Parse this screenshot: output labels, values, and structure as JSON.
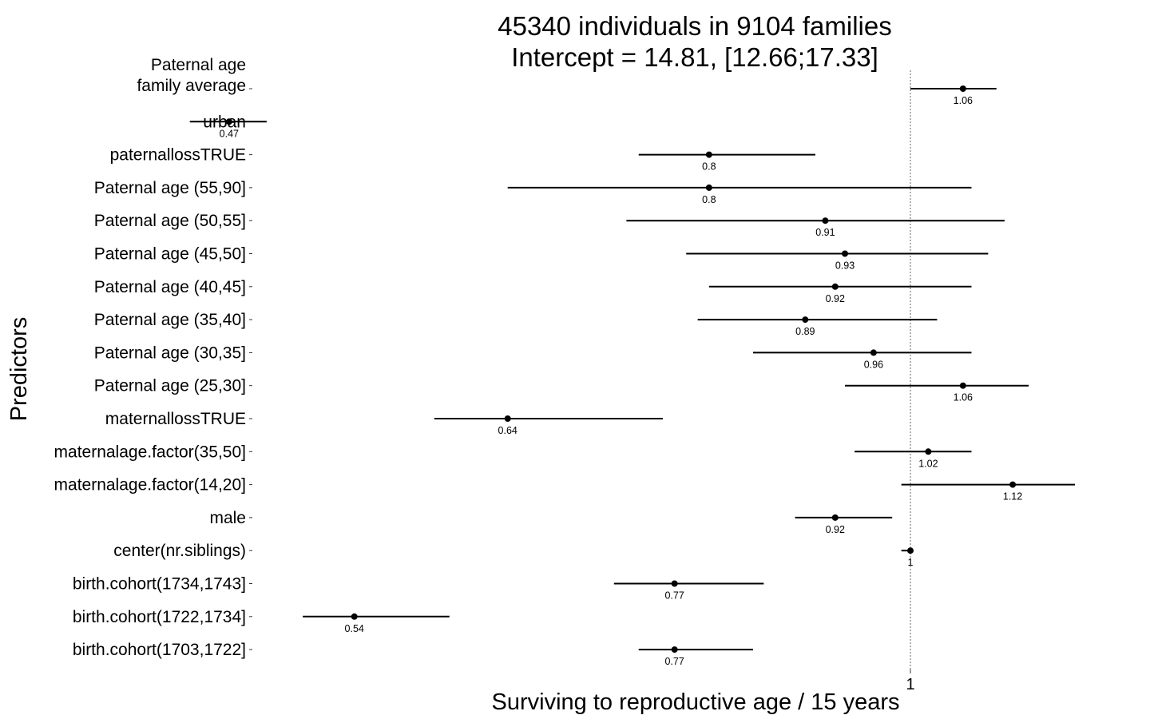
{
  "chart_data": {
    "type": "forest",
    "title": [
      "45340 individuals in 9104 families",
      "Intercept = 14.81, [12.66;17.33]"
    ],
    "xlabel": "Surviving to reproductive age / 15 years",
    "ylabel": "Predictors",
    "x_scale": "log",
    "xlim": [
      0.43,
      1.25
    ],
    "reference_line": 1,
    "x_ticks": [
      {
        "value": 1,
        "label": "1"
      }
    ],
    "rows": [
      {
        "label": [
          "Paternal age",
          "family average"
        ],
        "estimate": 1.06,
        "estimate_label": "1.06",
        "ci": [
          1.0,
          1.1
        ]
      },
      {
        "label": [
          "urban"
        ],
        "estimate": 0.47,
        "estimate_label": "0.47",
        "ci": [
          0.45,
          0.49
        ]
      },
      {
        "label": [
          "paternallossTRUE"
        ],
        "estimate": 0.8,
        "estimate_label": "0.8",
        "ci": [
          0.74,
          0.9
        ]
      },
      {
        "label": [
          "Paternal age (55,90]"
        ],
        "estimate": 0.8,
        "estimate_label": "0.8",
        "ci": [
          0.64,
          1.07
        ]
      },
      {
        "label": [
          "Paternal age (50,55]"
        ],
        "estimate": 0.91,
        "estimate_label": "0.91",
        "ci": [
          0.73,
          1.11
        ]
      },
      {
        "label": [
          "Paternal age (45,50]"
        ],
        "estimate": 0.93,
        "estimate_label": "0.93",
        "ci": [
          0.78,
          1.09
        ]
      },
      {
        "label": [
          "Paternal age (40,45]"
        ],
        "estimate": 0.92,
        "estimate_label": "0.92",
        "ci": [
          0.8,
          1.07
        ]
      },
      {
        "label": [
          "Paternal age (35,40]"
        ],
        "estimate": 0.89,
        "estimate_label": "0.89",
        "ci": [
          0.79,
          1.03
        ]
      },
      {
        "label": [
          "Paternal age (30,35]"
        ],
        "estimate": 0.96,
        "estimate_label": "0.96",
        "ci": [
          0.84,
          1.07
        ]
      },
      {
        "label": [
          "Paternal age (25,30]"
        ],
        "estimate": 1.06,
        "estimate_label": "1.06",
        "ci": [
          0.93,
          1.14
        ]
      },
      {
        "label": [
          "maternallossTRUE"
        ],
        "estimate": 0.64,
        "estimate_label": "0.64",
        "ci": [
          0.59,
          0.76
        ]
      },
      {
        "label": [
          "maternalage.factor(35,50]"
        ],
        "estimate": 1.02,
        "estimate_label": "1.02",
        "ci": [
          0.94,
          1.07
        ]
      },
      {
        "label": [
          "maternalage.factor(14,20]"
        ],
        "estimate": 1.12,
        "estimate_label": "1.12",
        "ci": [
          0.99,
          1.2
        ]
      },
      {
        "label": [
          "male"
        ],
        "estimate": 0.92,
        "estimate_label": "0.92",
        "ci": [
          0.88,
          0.98
        ]
      },
      {
        "label": [
          "center(nr.siblings)"
        ],
        "estimate": 1.0,
        "estimate_label": "1",
        "ci": [
          0.99,
          1.0
        ]
      },
      {
        "label": [
          "birth.cohort(1734,1743]"
        ],
        "estimate": 0.77,
        "estimate_label": "0.77",
        "ci": [
          0.72,
          0.85
        ]
      },
      {
        "label": [
          "birth.cohort(1722,1734]"
        ],
        "estimate": 0.54,
        "estimate_label": "0.54",
        "ci": [
          0.51,
          0.6
        ]
      },
      {
        "label": [
          "birth.cohort(1703,1722]"
        ],
        "estimate": 0.77,
        "estimate_label": "0.77",
        "ci": [
          0.74,
          0.84
        ]
      }
    ]
  }
}
